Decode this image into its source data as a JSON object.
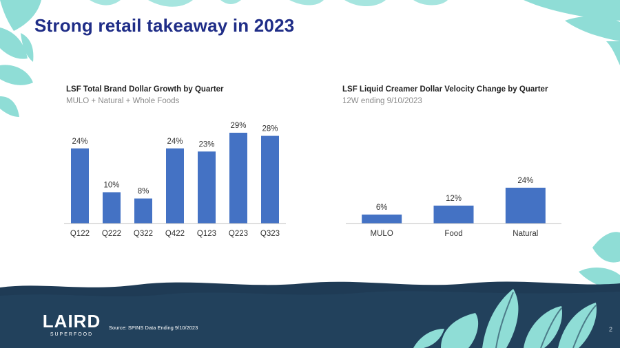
{
  "slide": {
    "title": "Strong retail takeaway in 2023",
    "source": "Source: SPINS Data Ending 9/10/2023",
    "page_number": "2",
    "logo_text": "LAIRD",
    "logo_subtext": "SUPERFOOD"
  },
  "colors": {
    "title": "#1f2d87",
    "bar": "#4472c4",
    "leaf": "#7fd6cf",
    "footer": "#1f3b55"
  },
  "chart_data": [
    {
      "type": "bar",
      "title": "LSF Total Brand Dollar Growth by Quarter",
      "subtitle": "MULO + Natural + Whole Foods",
      "categories": [
        "Q122",
        "Q222",
        "Q322",
        "Q422",
        "Q123",
        "Q223",
        "Q323"
      ],
      "values": [
        24,
        10,
        8,
        24,
        23,
        29,
        28
      ],
      "value_labels": [
        "24%",
        "10%",
        "8%",
        "24%",
        "23%",
        "29%",
        "28%"
      ],
      "ylim": [
        0,
        29
      ],
      "xlabel": "",
      "ylabel": "",
      "grid": false
    },
    {
      "type": "bar",
      "title": "LSF Liquid Creamer Dollar Velocity Change by Quarter",
      "subtitle": "12W ending 9/10/2023",
      "categories": [
        "MULO",
        "Food",
        "Natural"
      ],
      "values": [
        6,
        12,
        24
      ],
      "value_labels": [
        "6%",
        "12%",
        "24%"
      ],
      "ylim": [
        0,
        100
      ],
      "xlabel": "",
      "ylabel": "",
      "grid": false
    }
  ]
}
